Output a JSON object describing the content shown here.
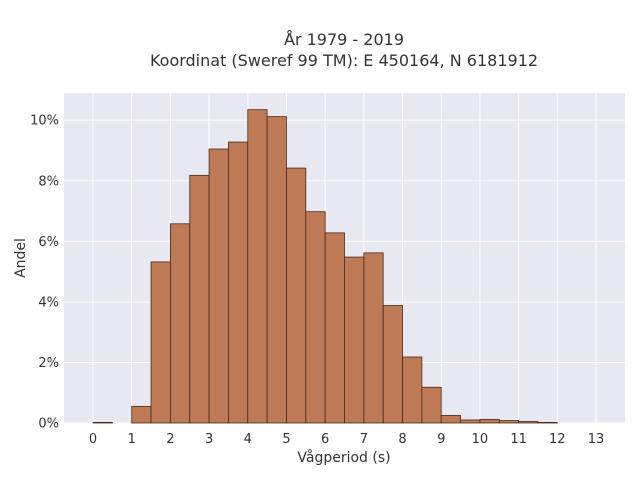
{
  "chart_data": {
    "type": "bar",
    "title_lines": [
      "År 1979 - 2019",
      "Koordinat (Sweref 99 TM): E 450164, N 6181912"
    ],
    "xlabel": "Vågperiod (s)",
    "ylabel": "Andel",
    "x_ticks": [
      "0",
      "1",
      "2",
      "3",
      "4",
      "5",
      "6",
      "7",
      "8",
      "9",
      "10",
      "11",
      "12",
      "13"
    ],
    "y_ticks": [
      "0%",
      "2%",
      "4%",
      "6%",
      "8%",
      "10%"
    ],
    "y_tick_values": [
      0,
      2,
      4,
      6,
      8,
      10
    ],
    "xlim": [
      -0.75,
      13.75
    ],
    "ylim": [
      0,
      10.9
    ],
    "bin_width": 0.5,
    "bins": [
      {
        "x0": 0.0,
        "value": 0.02
      },
      {
        "x0": 0.5,
        "value": 0.0
      },
      {
        "x0": 1.0,
        "value": 0.55
      },
      {
        "x0": 1.5,
        "value": 5.32
      },
      {
        "x0": 2.0,
        "value": 6.58
      },
      {
        "x0": 2.5,
        "value": 8.18
      },
      {
        "x0": 3.0,
        "value": 9.05
      },
      {
        "x0": 3.5,
        "value": 9.28
      },
      {
        "x0": 4.0,
        "value": 10.35
      },
      {
        "x0": 4.5,
        "value": 10.12
      },
      {
        "x0": 5.0,
        "value": 8.42
      },
      {
        "x0": 5.5,
        "value": 6.98
      },
      {
        "x0": 6.0,
        "value": 6.28
      },
      {
        "x0": 6.5,
        "value": 5.48
      },
      {
        "x0": 7.0,
        "value": 5.62
      },
      {
        "x0": 7.5,
        "value": 3.88
      },
      {
        "x0": 8.0,
        "value": 2.18
      },
      {
        "x0": 8.5,
        "value": 1.18
      },
      {
        "x0": 9.0,
        "value": 0.25
      },
      {
        "x0": 9.5,
        "value": 0.1
      },
      {
        "x0": 10.0,
        "value": 0.12
      },
      {
        "x0": 10.5,
        "value": 0.08
      },
      {
        "x0": 11.0,
        "value": 0.05
      },
      {
        "x0": 11.5,
        "value": 0.02
      }
    ],
    "grid": true,
    "bar_color": "#bd7a54",
    "edge_color": "#4a2a1a",
    "background_color": "#e8e8f2"
  }
}
